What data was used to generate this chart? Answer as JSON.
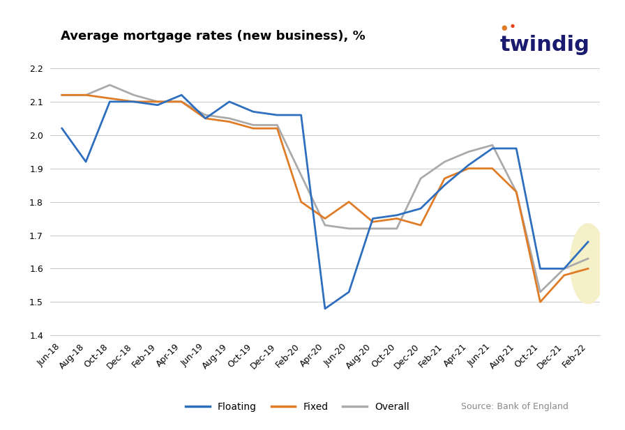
{
  "title": "Average mortgage rates (new business), %",
  "twindig_text": "twindig",
  "source_text": "Source: Bank of England",
  "ylim": [
    1.4,
    2.25
  ],
  "yticks": [
    1.4,
    1.5,
    1.6,
    1.7,
    1.8,
    1.9,
    2.0,
    2.1,
    2.2
  ],
  "x_labels": [
    "Jun-18",
    "Aug-18",
    "Oct-18",
    "Dec-18",
    "Feb-19",
    "Apr-19",
    "Jun-19",
    "Aug-19",
    "Oct-19",
    "Dec-19",
    "Feb-20",
    "Apr-20",
    "Jun-20",
    "Aug-20",
    "Oct-20",
    "Dec-20",
    "Feb-21",
    "Apr-21",
    "Jun-21",
    "Aug-21",
    "Oct-21",
    "Dec-21",
    "Feb-22"
  ],
  "floating": [
    2.02,
    1.92,
    2.1,
    2.1,
    2.09,
    2.12,
    2.05,
    2.1,
    2.07,
    2.06,
    2.06,
    1.48,
    1.53,
    1.75,
    1.76,
    1.78,
    1.85,
    1.91,
    1.96,
    1.96,
    1.6,
    1.6,
    1.68
  ],
  "fixed": [
    2.12,
    2.12,
    2.11,
    2.1,
    2.1,
    2.1,
    2.05,
    2.04,
    2.02,
    2.02,
    1.8,
    1.75,
    1.8,
    1.74,
    1.75,
    1.73,
    1.87,
    1.9,
    1.9,
    1.83,
    1.5,
    1.58,
    1.6
  ],
  "overall": [
    2.12,
    2.12,
    2.15,
    2.12,
    2.1,
    2.1,
    2.06,
    2.05,
    2.03,
    2.03,
    1.88,
    1.73,
    1.72,
    1.72,
    1.72,
    1.87,
    1.92,
    1.95,
    1.97,
    1.83,
    1.53,
    1.6,
    1.63
  ],
  "floating_color": "#2E6EBF",
  "fixed_color": "#E07B26",
  "overall_color": "#AAAAAA",
  "background_color": "#FFFFFF",
  "grid_color": "#CCCCCC",
  "highlight_color": "#F5F0C8",
  "title_fontsize": 13,
  "axis_fontsize": 9,
  "legend_fontsize": 10,
  "twindig_color": "#1a1a6e",
  "source_color": "#888888"
}
